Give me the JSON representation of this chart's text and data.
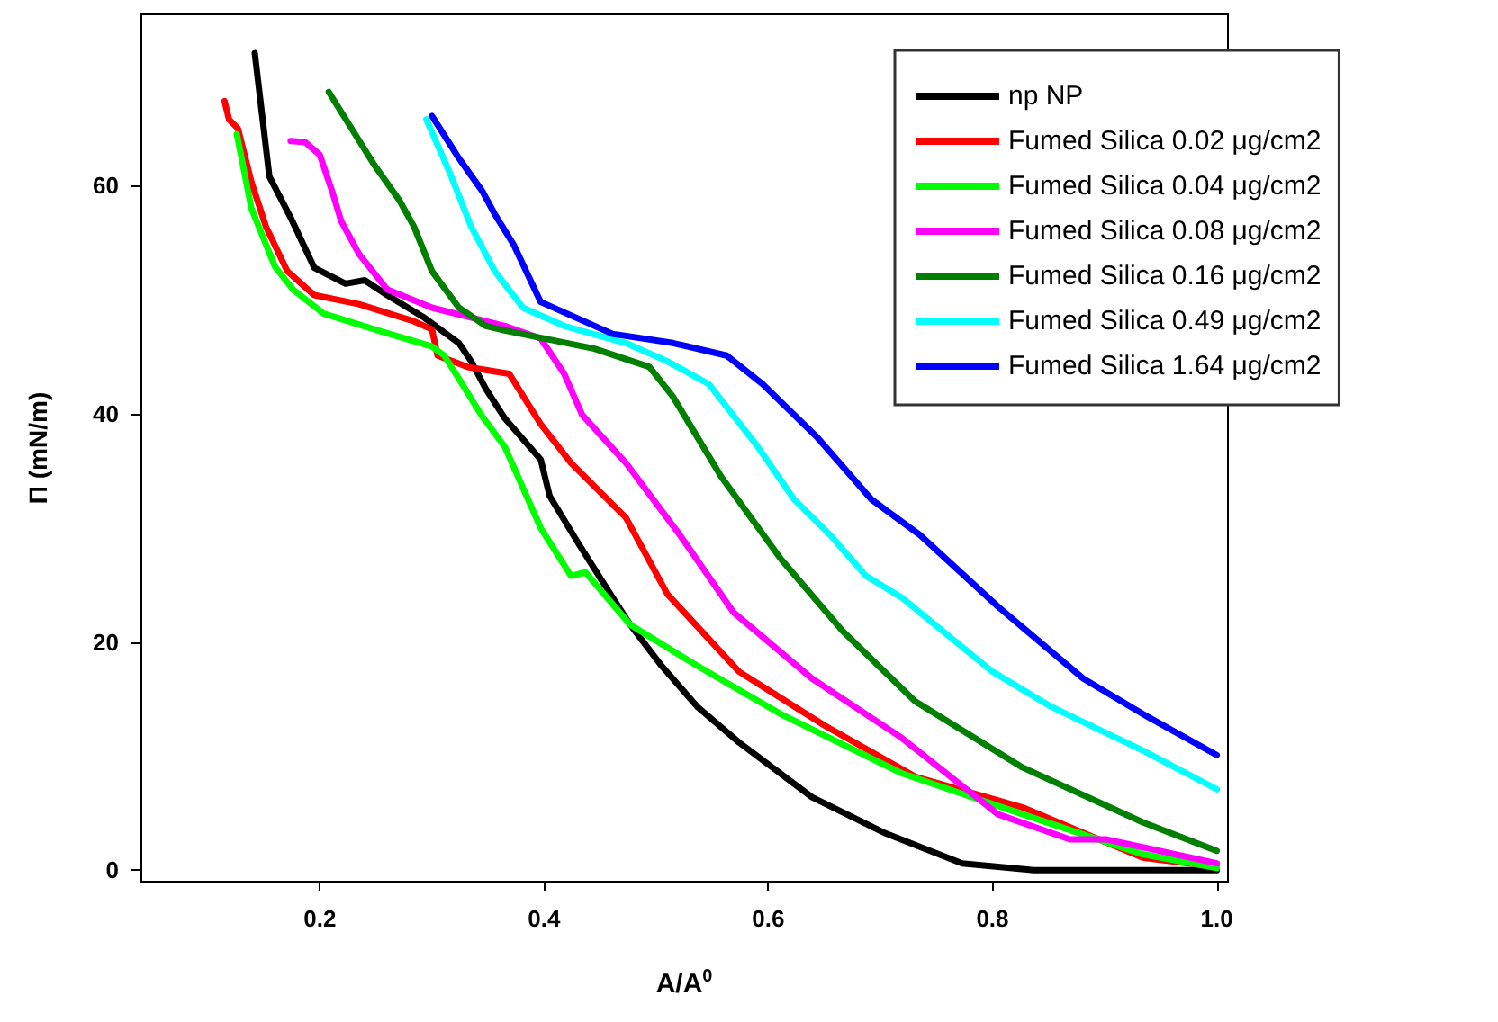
{
  "chart_data": {
    "type": "line",
    "xlabel": "A/A$^{0}$",
    "ylabel": "Π (mN/m)",
    "xlim": [
      0.04,
      1.01
    ],
    "ylim": [
      -1,
      75
    ],
    "xticks": [
      0.2,
      0.4,
      0.6,
      0.8,
      {
        "value": 1,
        "label": "1.0"
      }
    ],
    "yticks": [
      0,
      20,
      40,
      60
    ],
    "grid": false,
    "legend": "top right",
    "marker": "none",
    "line_style": "solid",
    "series": [
      {
        "name": "np NP",
        "color": "#000000",
        "x": [
          0.142,
          0.155,
          0.174,
          0.195,
          0.223,
          0.24,
          0.26,
          0.292,
          0.324,
          0.335,
          0.348,
          0.365,
          0.397,
          0.405,
          0.429,
          0.456,
          0.477,
          0.505,
          0.537,
          0.574,
          0.639,
          0.703,
          0.773,
          0.837,
          1.0
        ],
        "values": [
          71.6,
          60.8,
          57.2,
          52.8,
          51.4,
          51.7,
          50.4,
          48.5,
          46.2,
          44.6,
          42.2,
          39.6,
          36.0,
          32.8,
          28.9,
          24.7,
          21.5,
          17.9,
          14.3,
          11.2,
          6.4,
          3.3,
          0.6,
          0,
          0
        ]
      },
      {
        "name": "Fumed Silica 0.02 μg/cm2",
        "color": "#ff0000",
        "x": [
          0.115,
          0.119,
          0.127,
          0.139,
          0.152,
          0.171,
          0.195,
          0.235,
          0.284,
          0.3,
          0.305,
          0.332,
          0.369,
          0.397,
          0.424,
          0.473,
          0.51,
          0.574,
          0.65,
          0.731,
          0.827,
          0.934,
          1.0
        ],
        "values": [
          67.4,
          65.8,
          65.0,
          60.3,
          56.4,
          52.5,
          50.4,
          49.6,
          48.1,
          47.4,
          45.1,
          44.1,
          43.5,
          39.1,
          35.7,
          30.9,
          24.2,
          17.4,
          12.7,
          8.2,
          5.5,
          1.1,
          0.3
        ]
      },
      {
        "name": "Fumed Silica 0.04 μg/cm2",
        "color": "#00ff00",
        "x": [
          0.126,
          0.139,
          0.16,
          0.176,
          0.203,
          0.252,
          0.3,
          0.311,
          0.327,
          0.344,
          0.365,
          0.397,
          0.424,
          0.437,
          0.477,
          0.537,
          0.611,
          0.719,
          0.827,
          0.934,
          1.0
        ],
        "values": [
          64.5,
          58.0,
          52.9,
          50.9,
          48.8,
          47.3,
          45.9,
          45.1,
          42.6,
          39.9,
          37.1,
          30.0,
          25.8,
          26.1,
          21.5,
          17.9,
          13.7,
          8.5,
          4.9,
          1.4,
          0.2
        ]
      },
      {
        "name": "Fumed Silica 0.08 μg/cm2",
        "color": "#ff00ff",
        "x": [
          0.174,
          0.187,
          0.2,
          0.211,
          0.219,
          0.235,
          0.26,
          0.3,
          0.365,
          0.397,
          0.418,
          0.434,
          0.473,
          0.521,
          0.569,
          0.639,
          0.719,
          0.805,
          0.869,
          0.902,
          1.0
        ],
        "values": [
          63.9,
          63.8,
          62.7,
          59.5,
          56.9,
          54.0,
          50.9,
          49.3,
          47.7,
          46.6,
          43.5,
          39.9,
          35.7,
          29.4,
          22.6,
          16.8,
          11.6,
          4.9,
          2.7,
          2.7,
          0.6
        ]
      },
      {
        "name": "Fumed Silica 0.16 μg/cm2",
        "color": "#007f00",
        "x": [
          0.208,
          0.248,
          0.271,
          0.284,
          0.3,
          0.324,
          0.348,
          0.365,
          0.445,
          0.494,
          0.515,
          0.558,
          0.611,
          0.666,
          0.731,
          0.827,
          0.934,
          1.0
        ],
        "values": [
          68.2,
          61.9,
          58.7,
          56.4,
          52.5,
          49.3,
          47.7,
          47.3,
          45.7,
          44.1,
          41.5,
          34.5,
          27.3,
          21.0,
          14.8,
          9.0,
          4.2,
          1.7
        ]
      },
      {
        "name": "Fumed Silica 0.49 μg/cm2",
        "color": "#00ffff",
        "x": [
          0.295,
          0.316,
          0.335,
          0.356,
          0.381,
          0.418,
          0.473,
          0.51,
          0.547,
          0.59,
          0.623,
          0.655,
          0.687,
          0.719,
          0.8,
          0.853,
          0.934,
          1.0
        ],
        "values": [
          65.8,
          61.1,
          56.4,
          52.5,
          49.3,
          47.7,
          46.2,
          44.6,
          42.6,
          37.2,
          32.5,
          29.4,
          25.8,
          23.9,
          17.4,
          14.3,
          10.5,
          7.1
        ]
      },
      {
        "name": "Fumed Silica 1.64 μg/cm2",
        "color": "#0000ff",
        "x": [
          0.3,
          0.324,
          0.345,
          0.356,
          0.373,
          0.397,
          0.461,
          0.515,
          0.563,
          0.595,
          0.644,
          0.692,
          0.735,
          0.805,
          0.881,
          0.934,
          1.0
        ],
        "values": [
          66.1,
          62.4,
          59.5,
          57.5,
          54.8,
          49.8,
          47.0,
          46.2,
          45.1,
          42.6,
          37.9,
          32.5,
          29.4,
          23.1,
          16.8,
          13.7,
          10.1
        ]
      }
    ]
  }
}
